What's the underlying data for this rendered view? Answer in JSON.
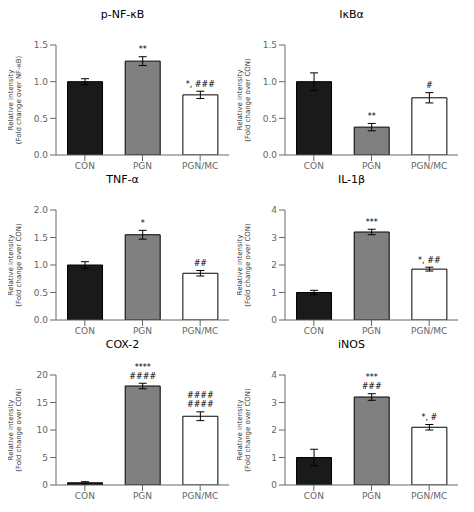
{
  "chart_data": [
    {
      "type": "bar",
      "title": "p-NF-κB",
      "categories": [
        "CON",
        "PGN",
        "PGN/MC"
      ],
      "values": [
        1.0,
        1.28,
        0.82
      ],
      "errors": [
        0.04,
        0.06,
        0.05
      ],
      "colors": [
        "#1a1a1a",
        "#808080",
        "#ffffff"
      ],
      "ylabel": "Relative intensity\n(Fold change over NF-κB)",
      "ylim": [
        0,
        1.5
      ],
      "yticks": [
        {
          "value": 0,
          "label": "0.0"
        },
        0.5,
        {
          "value": 1,
          "label": "1.0"
        },
        1.5
      ],
      "annotations": [
        null,
        "**",
        "*, ###"
      ],
      "grid": false
    },
    {
      "type": "bar",
      "title": "IκBα",
      "categories": [
        "CON",
        "PGN",
        "PGN/MC"
      ],
      "values": [
        1.0,
        0.38,
        0.78
      ],
      "errors": [
        0.12,
        0.05,
        0.07
      ],
      "colors": [
        "#1a1a1a",
        "#808080",
        "#ffffff"
      ],
      "ylabel": "Relative intensity\n(Fold change over CON)",
      "ylim": [
        0,
        1.5
      ],
      "yticks": [
        {
          "value": 0,
          "label": "0.0"
        },
        0.5,
        {
          "value": 1,
          "label": "1.0"
        },
        1.5
      ],
      "annotations": [
        null,
        "**",
        "#"
      ],
      "grid": false
    },
    {
      "type": "bar",
      "title": "TNF-α",
      "categories": [
        "CON",
        "PGN",
        "PGN/MC"
      ],
      "values": [
        1.0,
        1.55,
        0.85
      ],
      "errors": [
        0.06,
        0.08,
        0.05
      ],
      "colors": [
        "#1a1a1a",
        "#808080",
        "#ffffff"
      ],
      "ylabel": "Relative intensity\n(Fold change over CON)",
      "ylim": [
        0,
        2
      ],
      "yticks": [
        {
          "value": 0,
          "label": "0.0"
        },
        0.5,
        {
          "value": 1,
          "label": "1.0"
        },
        1.5,
        {
          "value": 2,
          "label": "2.0"
        }
      ],
      "annotations": [
        null,
        "*",
        "##"
      ],
      "grid": false
    },
    {
      "type": "bar",
      "title": "IL-1β",
      "categories": [
        "CON",
        "PGN",
        "PGN/MC"
      ],
      "values": [
        1.0,
        3.2,
        1.85
      ],
      "errors": [
        0.08,
        0.1,
        0.07
      ],
      "colors": [
        "#1a1a1a",
        "#808080",
        "#ffffff"
      ],
      "ylabel": "Relative intensity\n(Fold change over CON)",
      "ylim": [
        0,
        4
      ],
      "yticks": [
        0,
        1,
        2,
        3,
        4
      ],
      "annotations": [
        null,
        "***",
        "*, ##"
      ],
      "grid": false
    },
    {
      "type": "bar",
      "title": "COX-2",
      "categories": [
        "CON",
        "PGN",
        "PGN/MC"
      ],
      "values": [
        0.4,
        18.0,
        12.5
      ],
      "errors": [
        0.2,
        0.5,
        0.8
      ],
      "colors": [
        "#1a1a1a",
        "#808080",
        "#ffffff"
      ],
      "ylabel": "Relative intensity\n(Fold change over CON)",
      "ylim": [
        0,
        20
      ],
      "yticks": [
        0,
        5,
        10,
        15,
        20
      ],
      "annotations": [
        null,
        "****\n####",
        "####\n####"
      ],
      "grid": false
    },
    {
      "type": "bar",
      "title": "iNOS",
      "categories": [
        "CON",
        "PGN",
        "PGN/MC"
      ],
      "values": [
        1.0,
        3.2,
        2.1
      ],
      "errors": [
        0.3,
        0.12,
        0.1
      ],
      "colors": [
        "#1a1a1a",
        "#808080",
        "#ffffff"
      ],
      "ylabel": "Relative intensity\n(Fold change over CON)",
      "ylim": [
        0,
        4
      ],
      "yticks": [
        0,
        1,
        2,
        3,
        4
      ],
      "annotations": [
        null,
        "***\n###",
        "*, #"
      ],
      "grid": false
    }
  ]
}
